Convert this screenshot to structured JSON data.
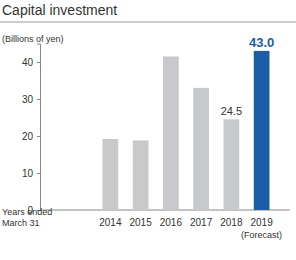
{
  "chart_data": {
    "type": "bar",
    "title": "Capital investment",
    "y_label": "(Billions of yen)",
    "x_label": "Years ended\nMarch 31",
    "categories": [
      "2014",
      "2015",
      "2016",
      "2017",
      "2018",
      "2019\n(Forecast)"
    ],
    "values": [
      19.2,
      18.8,
      41.5,
      33.0,
      24.5,
      43.0
    ],
    "value_labels": [
      null,
      null,
      null,
      null,
      "24.5",
      "43.0"
    ],
    "colors": [
      "#c8c9cb",
      "#c8c9cb",
      "#c8c9cb",
      "#c8c9cb",
      "#c8c9cb",
      "#1d5ca6"
    ],
    "ylim": [
      0,
      45
    ],
    "yticks": [
      0,
      10,
      20,
      30,
      40
    ],
    "grid": false,
    "data_labels": true
  }
}
